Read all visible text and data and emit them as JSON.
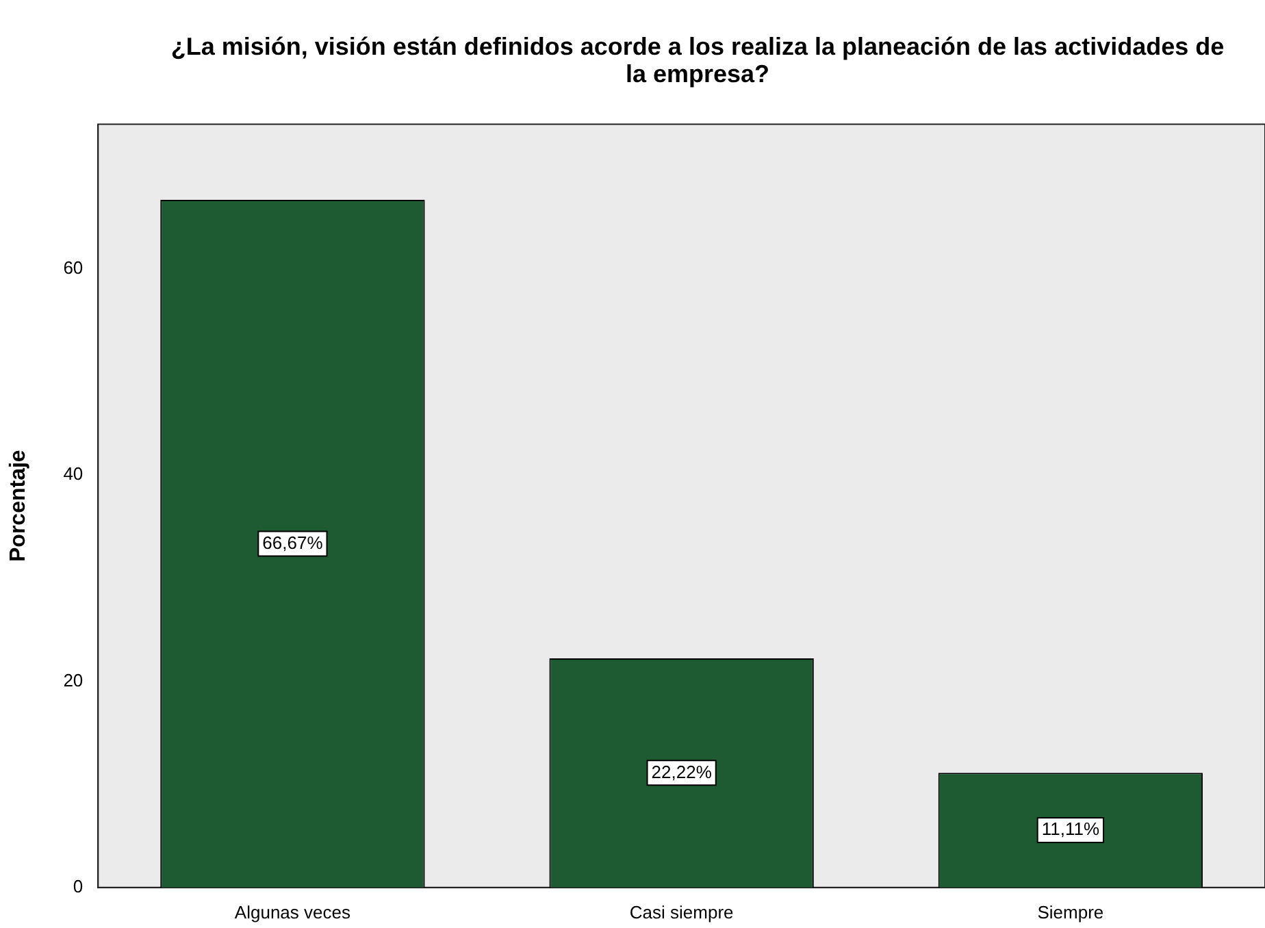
{
  "chart_data": {
    "type": "bar",
    "title": "¿La misión, visión están definidos acorde a los realiza la planeación de las actividades de la empresa?",
    "ylabel": "Porcentaje",
    "categories": [
      "Algunas veces",
      "Casi siempre",
      "Siempre"
    ],
    "values": [
      66.67,
      22.22,
      11.11
    ],
    "value_labels": [
      "66,67%",
      "22,22%",
      "11,11%"
    ],
    "color": "#1e5a32",
    "ylim": [
      0,
      74
    ],
    "yticks": [
      0,
      20,
      40,
      60
    ],
    "grid": false,
    "legend": false
  }
}
